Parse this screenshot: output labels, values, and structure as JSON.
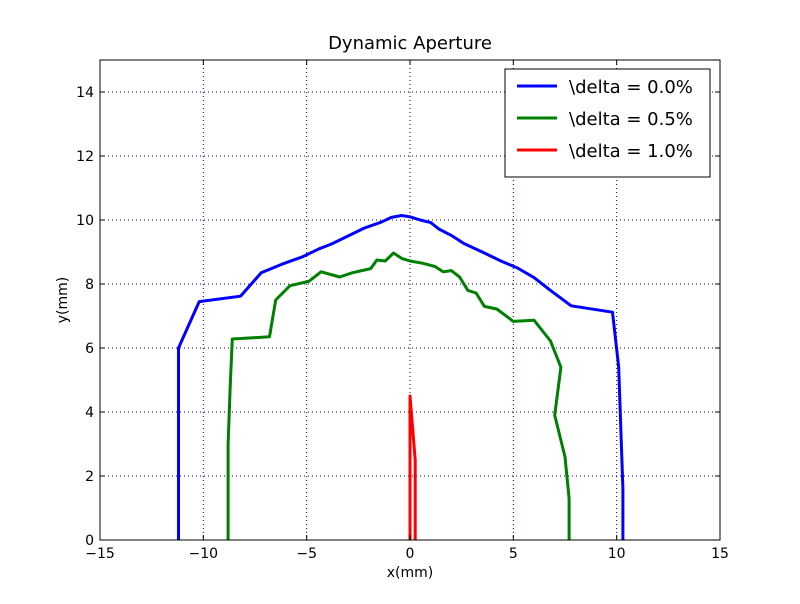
{
  "chart_data": {
    "type": "line",
    "title": "Dynamic Aperture",
    "xlabel": "x(mm)",
    "ylabel": "y(mm)",
    "xlim": [
      -15,
      15
    ],
    "ylim": [
      0,
      15
    ],
    "xticks": [
      -15,
      -10,
      -5,
      0,
      5,
      10,
      15
    ],
    "yticks": [
      0,
      2,
      4,
      6,
      8,
      10,
      12,
      14
    ],
    "xtick_labels": [
      "−15",
      "−10",
      "−5",
      "0",
      "5",
      "10",
      "15"
    ],
    "ytick_labels": [
      "0",
      "2",
      "4",
      "6",
      "8",
      "10",
      "12",
      "14"
    ],
    "grid": true,
    "legend_position": "top-right",
    "series": [
      {
        "name": "\\delta = 0.0%",
        "color": "#0000ff",
        "points": [
          [
            -11.2,
            0
          ],
          [
            -11.2,
            6.0
          ],
          [
            -10.2,
            7.45
          ],
          [
            -8.2,
            7.62
          ],
          [
            -7.2,
            8.35
          ],
          [
            -6.2,
            8.62
          ],
          [
            -5.2,
            8.85
          ],
          [
            -4.4,
            9.1
          ],
          [
            -3.8,
            9.25
          ],
          [
            -3.0,
            9.5
          ],
          [
            -2.2,
            9.75
          ],
          [
            -1.4,
            9.93
          ],
          [
            -0.9,
            10.08
          ],
          [
            -0.4,
            10.14
          ],
          [
            0.0,
            10.1
          ],
          [
            0.5,
            10.0
          ],
          [
            1.0,
            9.92
          ],
          [
            1.4,
            9.72
          ],
          [
            2.0,
            9.52
          ],
          [
            2.6,
            9.27
          ],
          [
            3.0,
            9.15
          ],
          [
            3.6,
            8.97
          ],
          [
            4.4,
            8.72
          ],
          [
            5.2,
            8.5
          ],
          [
            6.0,
            8.2
          ],
          [
            6.8,
            7.8
          ],
          [
            7.8,
            7.32
          ],
          [
            9.8,
            7.12
          ],
          [
            10.1,
            5.4
          ],
          [
            10.3,
            1.6
          ],
          [
            10.3,
            0
          ]
        ]
      },
      {
        "name": "\\delta = 0.5%",
        "color": "#008000",
        "points": [
          [
            -8.8,
            0
          ],
          [
            -8.8,
            3.0
          ],
          [
            -8.7,
            4.8
          ],
          [
            -8.6,
            6.28
          ],
          [
            -6.8,
            6.35
          ],
          [
            -6.5,
            7.5
          ],
          [
            -5.8,
            7.95
          ],
          [
            -4.9,
            8.08
          ],
          [
            -4.3,
            8.38
          ],
          [
            -3.4,
            8.22
          ],
          [
            -2.8,
            8.35
          ],
          [
            -1.9,
            8.48
          ],
          [
            -1.6,
            8.75
          ],
          [
            -1.2,
            8.72
          ],
          [
            -0.8,
            8.97
          ],
          [
            -0.4,
            8.8
          ],
          [
            0.0,
            8.72
          ],
          [
            0.6,
            8.65
          ],
          [
            1.2,
            8.55
          ],
          [
            1.6,
            8.38
          ],
          [
            2.0,
            8.42
          ],
          [
            2.4,
            8.22
          ],
          [
            2.8,
            7.8
          ],
          [
            3.2,
            7.72
          ],
          [
            3.6,
            7.3
          ],
          [
            4.2,
            7.22
          ],
          [
            5.0,
            6.83
          ],
          [
            6.0,
            6.87
          ],
          [
            6.8,
            6.22
          ],
          [
            7.3,
            5.4
          ],
          [
            7.0,
            3.9
          ],
          [
            7.5,
            2.6
          ],
          [
            7.7,
            1.3
          ],
          [
            7.7,
            0
          ]
        ]
      },
      {
        "name": "\\delta = 1.0%",
        "color": "#ff0000",
        "points": [
          [
            0.0,
            0
          ],
          [
            0.0,
            4.5
          ],
          [
            0.25,
            2.5
          ],
          [
            0.25,
            0
          ]
        ]
      }
    ]
  }
}
